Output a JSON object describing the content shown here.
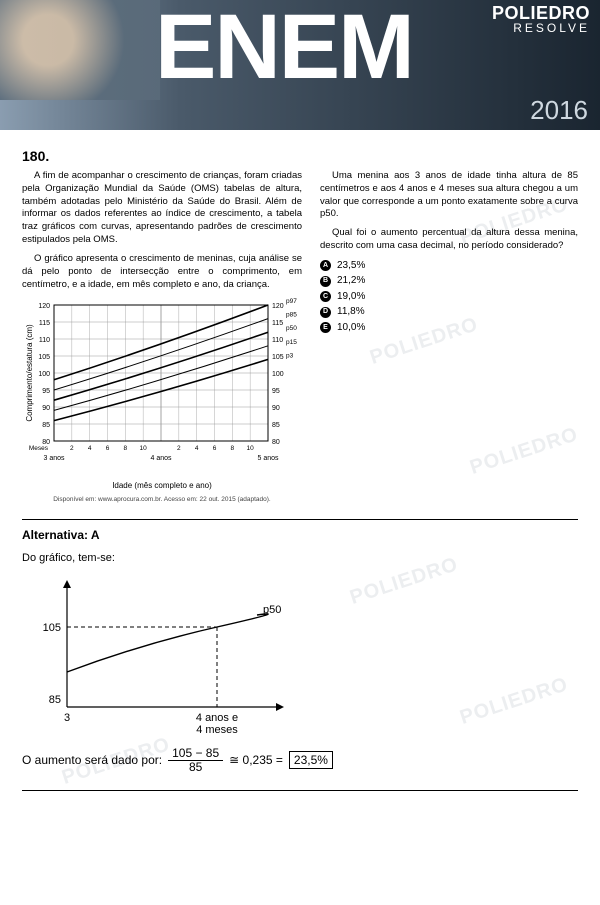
{
  "header": {
    "brand_line1": "POLIEDRO",
    "brand_line2": "RESOLVE",
    "title": "ENEM",
    "year": "2016"
  },
  "question": {
    "number": "180.",
    "para1": "A fim de acompanhar o crescimento de crianças, foram criadas pela Organização Mundial da Saúde (OMS) tabelas de altura, também adotadas pelo Ministério da Saúde do Brasil. Além de informar os dados referentes ao índice de crescimento, a tabela traz gráficos com curvas, apresentando padrões de crescimento estipulados pela OMS.",
    "para2": "O gráfico apresenta o crescimento de meninas, cuja análise se dá pelo ponto de intersecção entre o comprimento, em centímetro, e a idade, em mês completo e ano, da criança.",
    "para3": "Uma menina aos 3 anos de idade tinha altura de 85 centímetros e aos 4 anos e 4 meses sua altura chegou a um valor que corresponde a um ponto exatamente sobre a curva p50.",
    "prompt": "Qual foi o aumento percentual da altura dessa menina, descrito com uma casa decimal, no período considerado?",
    "options": [
      {
        "letter": "A",
        "text": "23,5%"
      },
      {
        "letter": "B",
        "text": "21,2%"
      },
      {
        "letter": "C",
        "text": "19,0%"
      },
      {
        "letter": "D",
        "text": "11,8%"
      },
      {
        "letter": "E",
        "text": "10,0%"
      }
    ]
  },
  "growth_chart": {
    "type": "line",
    "y_label": "Comprimento/estatura (cm)",
    "x_label": "Idade (mês completo e ano)",
    "x_sections": [
      "3 anos",
      "4 anos",
      "5 anos"
    ],
    "x_months": [
      "Meses",
      "2",
      "4",
      "6",
      "8",
      "10",
      "2",
      "4",
      "6",
      "8",
      "10"
    ],
    "y_ticks": [
      80,
      85,
      90,
      95,
      100,
      105,
      110,
      115,
      120
    ],
    "ylim": [
      80,
      120
    ],
    "series": [
      {
        "name": "p97",
        "y_start": 98,
        "y_end": 120,
        "color": "#000000",
        "width": 1.6
      },
      {
        "name": "p85",
        "y_start": 95,
        "y_end": 116,
        "color": "#000000",
        "width": 1.0
      },
      {
        "name": "p50",
        "y_start": 92,
        "y_end": 112,
        "color": "#000000",
        "width": 1.6
      },
      {
        "name": "p15",
        "y_start": 89,
        "y_end": 108,
        "color": "#000000",
        "width": 1.0
      },
      {
        "name": "p3",
        "y_start": 86,
        "y_end": 104,
        "color": "#000000",
        "width": 1.6
      }
    ],
    "grid_color": "#999999",
    "background_color": "#ffffff",
    "source": "Disponível em: www.aprocura.com.br. Acesso em: 22 out. 2015 (adaptado)."
  },
  "answer": {
    "label": "Alternativa: A",
    "intro": "Do gráfico, tem-se:",
    "sketch": {
      "type": "line",
      "y_ticks": [
        "105",
        "85"
      ],
      "x_ticks": [
        "3",
        "4 anos e\n4 meses"
      ],
      "curve_label": "p50",
      "curve_color": "#000000",
      "dash_color": "#000000"
    },
    "formula_lead": "O aumento será dado por:",
    "formula_num": "105 − 85",
    "formula_den": "85",
    "formula_approx": "≅ 0,235 =",
    "formula_result": "23,5%"
  },
  "watermark_text": "POLIEDRO"
}
